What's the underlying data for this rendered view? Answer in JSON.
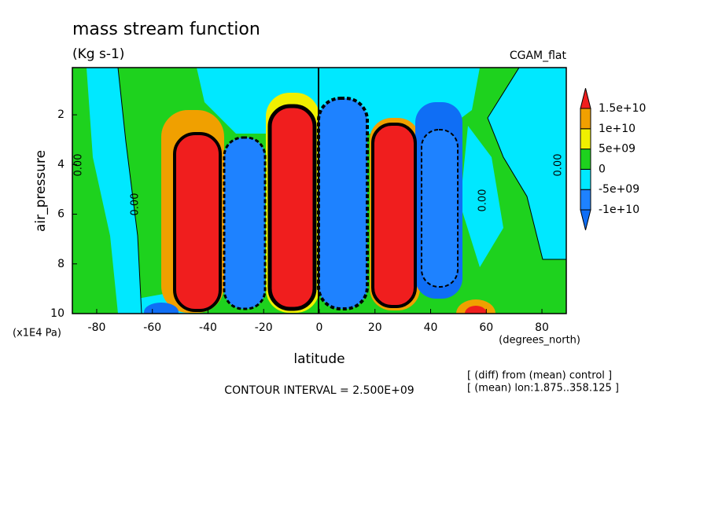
{
  "chart_data": {
    "type": "contour",
    "title": "mass stream function",
    "subtitle": "(Kg s-1)",
    "experiment": "CGAM_flat",
    "x_label": "latitude",
    "x_units": "(degrees_north)",
    "y_label": "air_pressure",
    "y_units": "(x1E4 Pa)",
    "xlim": [
      -88.75,
      88.75
    ],
    "xticks": [
      -80,
      -60,
      -40,
      -20,
      0,
      20,
      40,
      60,
      80
    ],
    "ylim": [
      10,
      0.1
    ],
    "yticks": [
      2,
      4,
      6,
      8,
      10
    ],
    "contour_interval": "CONTOUR INTERVAL = 2.500E+09",
    "contour_label": "0.00",
    "notes": [
      "[ (diff) from (mean) control ]",
      "[ (mean) lon:1.875..358.125 ]"
    ],
    "colorbar": {
      "levels": [
        {
          "value": -10000000000,
          "label": "-1e+10"
        },
        {
          "value": -5000000000,
          "label": "-5e+09"
        },
        0,
        {
          "value": 5000000000,
          "label": "5e+09"
        },
        {
          "value": 10000000000,
          "label": "1e+10"
        },
        {
          "value": 15000000000,
          "label": "1.5e+10"
        }
      ],
      "colors": [
        "#0f6ef5",
        "#1e82ff",
        "#00e8ff",
        "#1ed21e",
        "#f0f000",
        "#f0a000",
        "#f01e1e"
      ]
    }
  }
}
